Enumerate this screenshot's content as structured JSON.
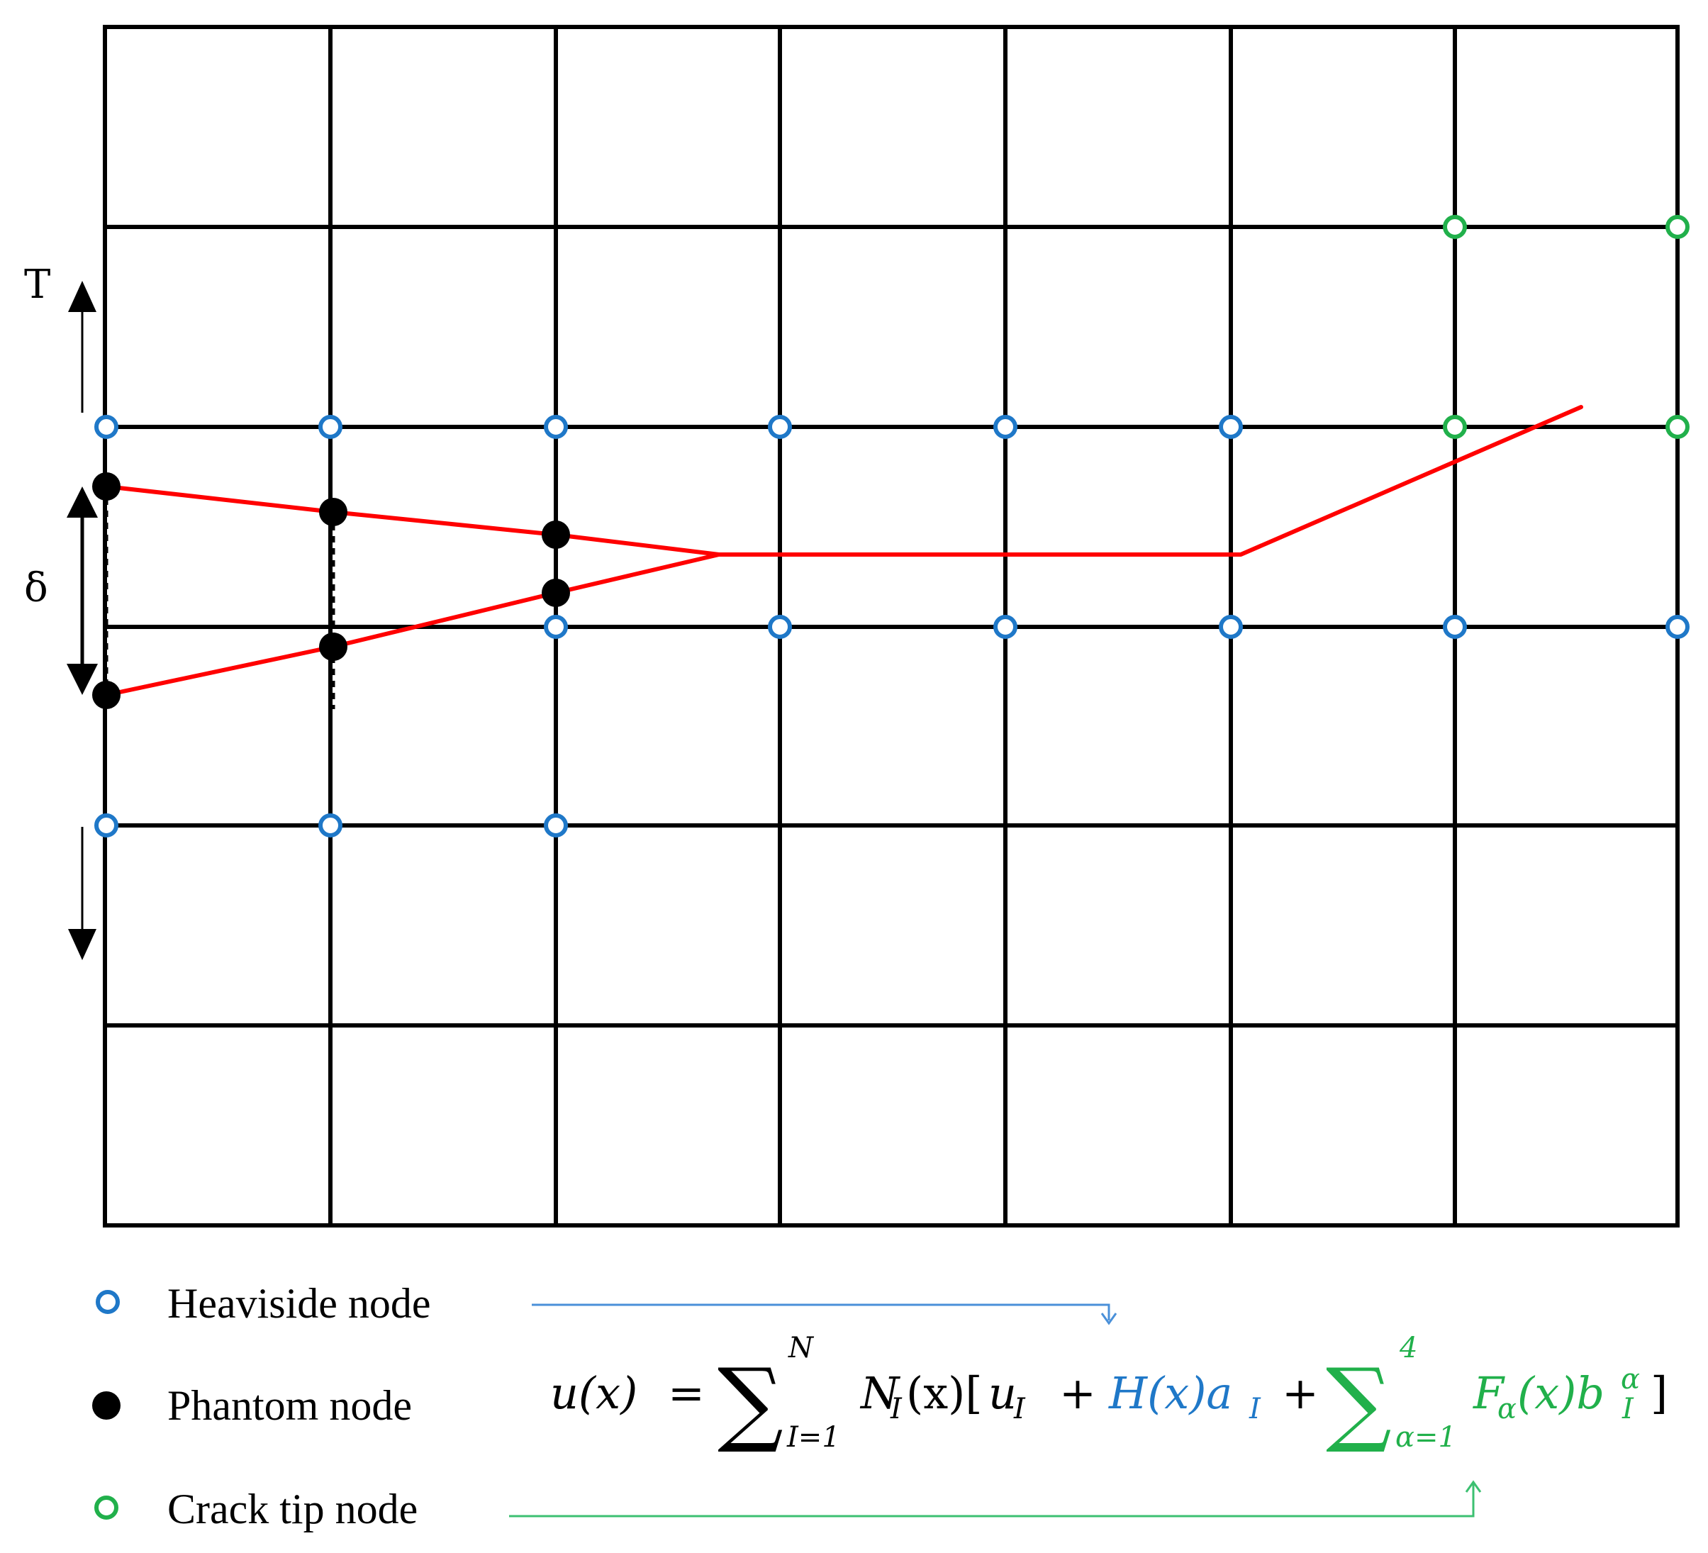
{
  "labels": {
    "traction": "T",
    "separation": "δ"
  },
  "legend": {
    "heaviside": "Heaviside node",
    "phantom": "Phantom node",
    "crack_tip": "Crack tip node"
  },
  "equation": {
    "lhs": "u(x)",
    "equals": "=",
    "sigma": "∑",
    "sum_upper": "N",
    "sum_lower": "I=1",
    "shape": "N",
    "shape_sub": "I",
    "shape_arg": "(x)[",
    "u": "u",
    "u_sub": "I",
    "plus": "+",
    "heaviside_term": "H(x)a",
    "heaviside_sub": "I",
    "plus2": "+",
    "sigma2": "∑",
    "sum2_upper": "4",
    "sum2_lower": "α=1",
    "enrich_term": "F",
    "enrich_sub": "α",
    "enrich_mid": "(x)b",
    "enrich_b_sub": "I",
    "enrich_b_sup": "α",
    "close": "]"
  },
  "colors": {
    "grid": "#000000",
    "crack": "#ff0000",
    "heaviside": "#1f78c8",
    "crack_tip": "#21b04b",
    "phantom": "#000000"
  }
}
